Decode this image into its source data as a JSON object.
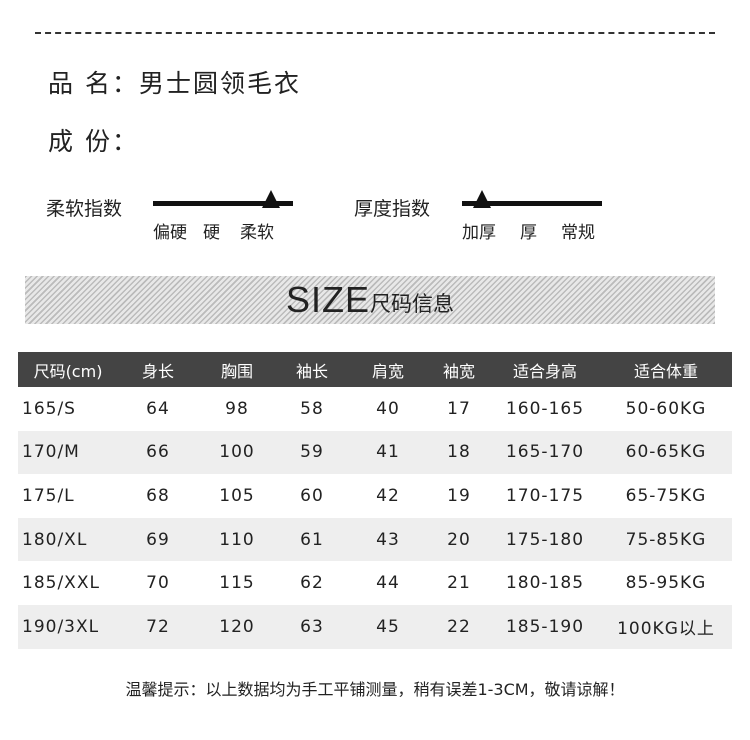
{
  "product": {
    "name_label": "品 名：",
    "name_value": "男士圆领毛衣",
    "composition_label": "成 份：",
    "composition_value": ""
  },
  "softness": {
    "label": "柔软指数",
    "ticks": [
      "偏硬",
      "硬",
      "柔软"
    ],
    "selected": "柔软"
  },
  "thickness": {
    "label": "厚度指数",
    "ticks": [
      "加厚",
      "厚",
      "常规"
    ],
    "selected": "加厚"
  },
  "banner": {
    "title": "SIZE",
    "subtitle": "尺码信息"
  },
  "table": {
    "headers": [
      "尺码(cm)",
      "身长",
      "胸围",
      "袖长",
      "肩宽",
      "袖宽",
      "适合身高",
      "适合体重"
    ],
    "rows": [
      [
        "165/S",
        "64",
        "98",
        "58",
        "40",
        "17",
        "160-165",
        "50-60KG"
      ],
      [
        "170/M",
        "66",
        "100",
        "59",
        "41",
        "18",
        "165-170",
        "60-65KG"
      ],
      [
        "175/L",
        "68",
        "105",
        "60",
        "42",
        "19",
        "170-175",
        "65-75KG"
      ],
      [
        "180/XL",
        "69",
        "110",
        "61",
        "43",
        "20",
        "175-180",
        "75-85KG"
      ],
      [
        "185/XXL",
        "70",
        "115",
        "62",
        "44",
        "21",
        "180-185",
        "85-95KG"
      ],
      [
        "190/3XL",
        "72",
        "120",
        "63",
        "45",
        "22",
        "185-190",
        "100KG以上"
      ]
    ]
  },
  "footer": "温馨提示：以上数据均为手工平铺测量，稍有误差1-3CM，敬请谅解！"
}
